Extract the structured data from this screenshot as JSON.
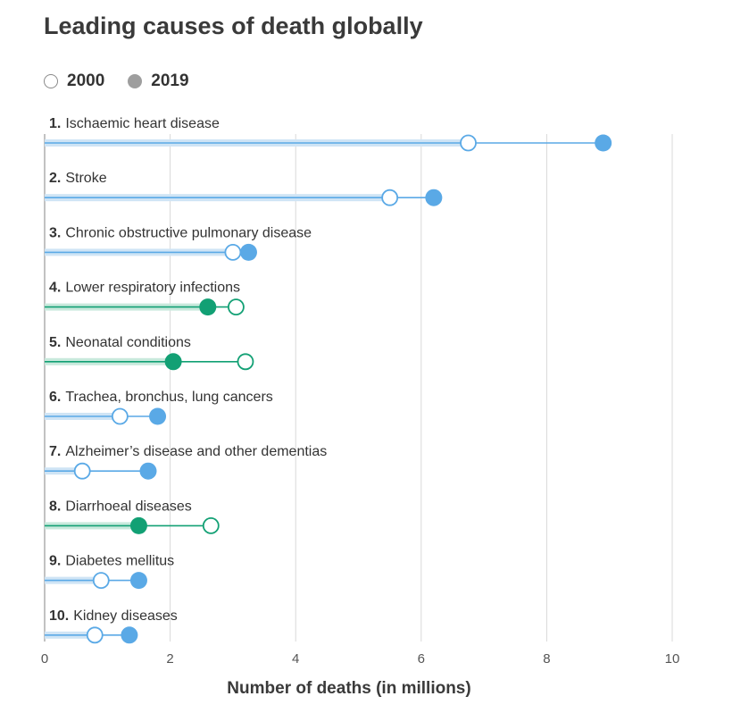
{
  "chart_data": {
    "type": "dumbbell",
    "title": "Leading causes of death globally",
    "xlabel": "Number of deaths (in millions)",
    "xlim": [
      0,
      10
    ],
    "xticks": [
      0,
      2,
      4,
      6,
      8,
      10
    ],
    "grid": true,
    "legend_position": "top-left",
    "series": [
      {
        "name": "2000",
        "style": "hollow"
      },
      {
        "name": "2019",
        "style": "filled"
      }
    ],
    "colors": {
      "increase": "#5aa9e6",
      "increase_band": "#cfe4f5",
      "decrease": "#12a074",
      "decrease_band": "#c8e9dc",
      "grid": "#d9d9d9"
    },
    "categories": [
      {
        "rank": "1.",
        "label": "Ischaemic heart disease",
        "v2000": 6.75,
        "v2019": 8.9
      },
      {
        "rank": "2.",
        "label": "Stroke",
        "v2000": 5.5,
        "v2019": 6.2
      },
      {
        "rank": "3.",
        "label": "Chronic obstructive pulmonary disease",
        "v2000": 3.0,
        "v2019": 3.25
      },
      {
        "rank": "4.",
        "label": "Lower respiratory infections",
        "v2000": 3.05,
        "v2019": 2.6
      },
      {
        "rank": "5.",
        "label": "Neonatal conditions",
        "v2000": 3.2,
        "v2019": 2.05
      },
      {
        "rank": "6.",
        "label": "Trachea, bronchus, lung cancers",
        "v2000": 1.2,
        "v2019": 1.8
      },
      {
        "rank": "7.",
        "label": "Alzheimer’s disease and other dementias",
        "v2000": 0.6,
        "v2019": 1.65
      },
      {
        "rank": "8.",
        "label": "Diarrhoeal diseases",
        "v2000": 2.65,
        "v2019": 1.5
      },
      {
        "rank": "9.",
        "label": "Diabetes mellitus",
        "v2000": 0.9,
        "v2019": 1.5
      },
      {
        "rank": "10.",
        "label": "Kidney diseases",
        "v2000": 0.8,
        "v2019": 1.35
      }
    ]
  }
}
